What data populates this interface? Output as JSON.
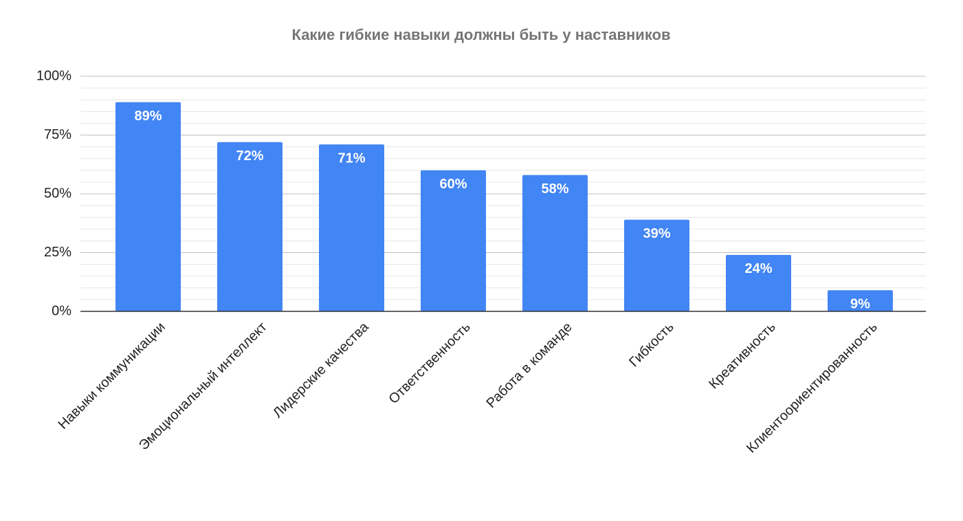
{
  "chart_data": {
    "type": "bar",
    "title": "Какие гибкие навыки должны быть у наставников",
    "categories": [
      "Навыки коммуникации",
      "Эмоциональный интеллект",
      "Лидерские качества",
      "Ответственность",
      "Работа в команде",
      "Гибкость",
      "Креативность",
      "Клиентоориентированность"
    ],
    "values": [
      89,
      72,
      71,
      60,
      58,
      39,
      24,
      9
    ],
    "value_labels": [
      "89%",
      "72%",
      "71%",
      "60%",
      "58%",
      "39%",
      "24%",
      "9%"
    ],
    "color": "#4285f4",
    "ylim": [
      0,
      100
    ],
    "yticks": [
      {
        "value": 0,
        "label": "0%"
      },
      {
        "value": 25,
        "label": "25%"
      },
      {
        "value": 50,
        "label": "50%"
      },
      {
        "value": 75,
        "label": "75%"
      },
      {
        "value": 100,
        "label": "100%"
      }
    ],
    "minor_yticks": [
      5,
      10,
      15,
      20,
      30,
      35,
      40,
      45,
      55,
      60,
      65,
      70,
      80,
      85,
      90,
      95
    ],
    "grid": true
  }
}
